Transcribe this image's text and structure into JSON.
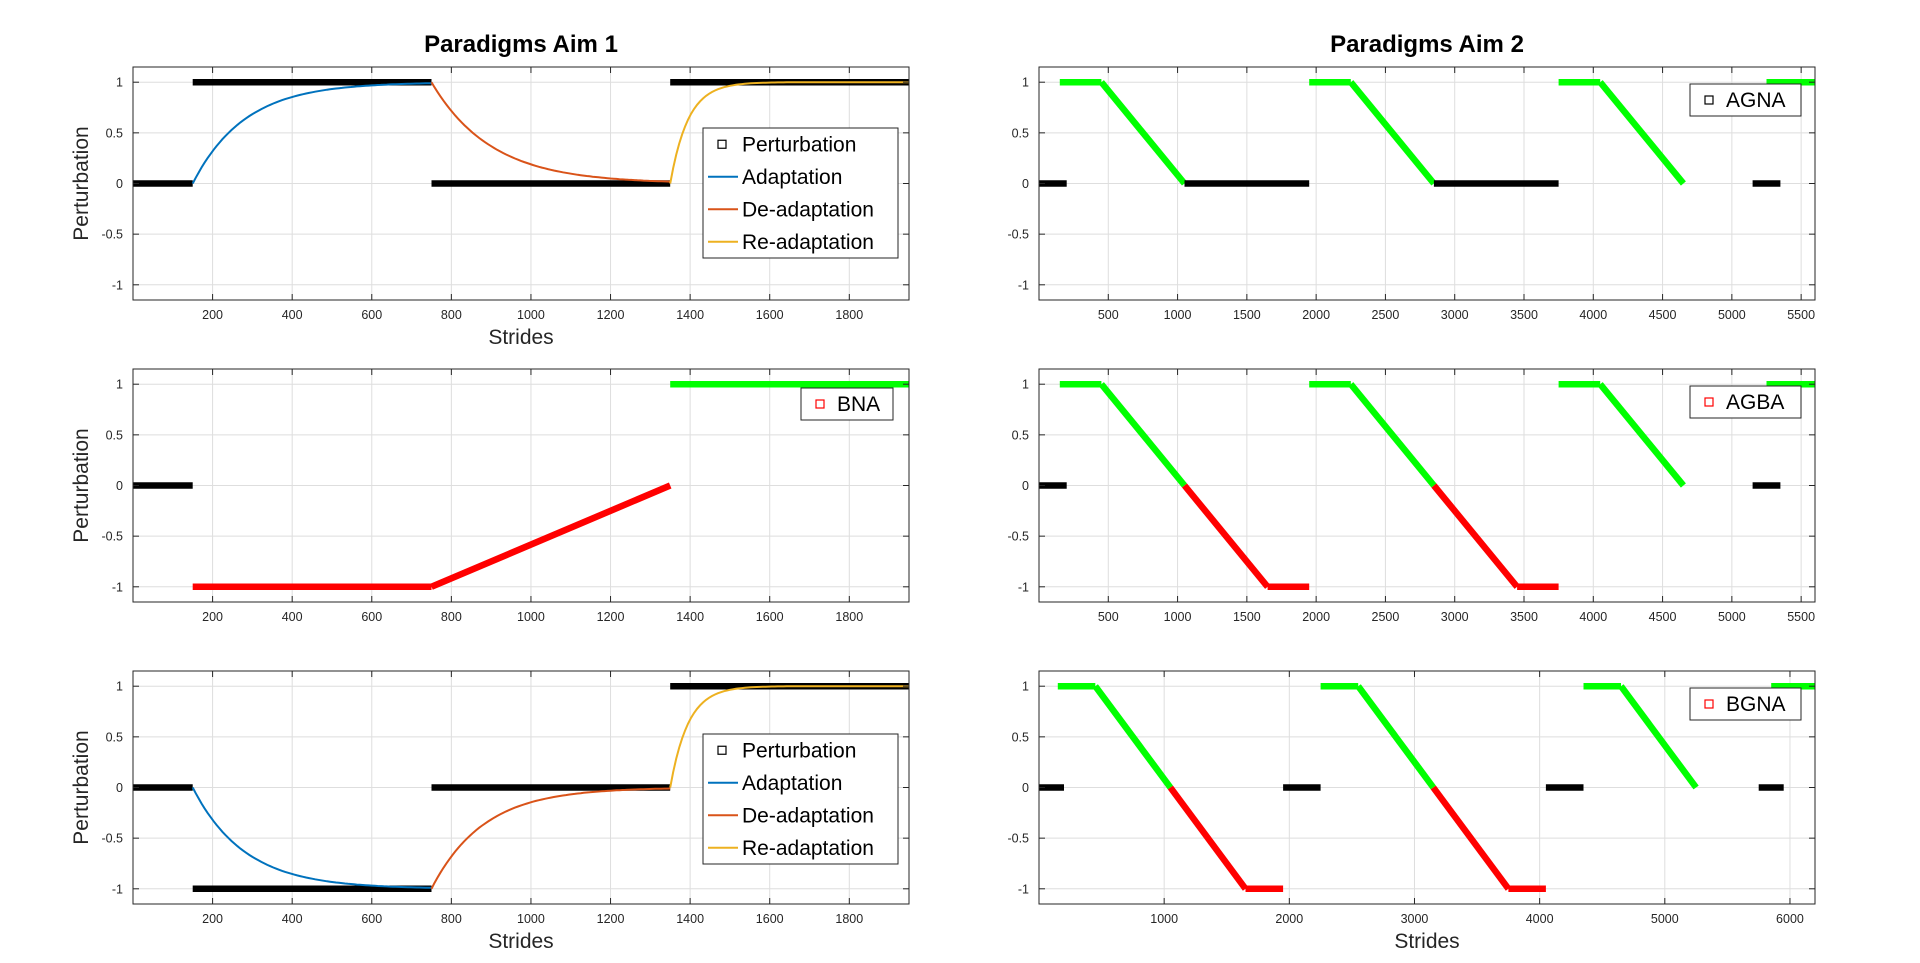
{
  "colors": {
    "perturbation": "#000000",
    "adaptation": "#0072BD",
    "deadaptation": "#D95319",
    "readaptation": "#EDB120",
    "green": "#00FF00",
    "red": "#FF0000",
    "grid": "#DEDEDE",
    "axis": "#262626"
  },
  "chart_data": [
    {
      "id": "a1",
      "type": "line",
      "title": "Paradigms Aim 1",
      "xlabel": "Strides",
      "ylabel": "Perturbation",
      "xlim": [
        0,
        1950
      ],
      "ylim": [
        -1.15,
        1.15
      ],
      "xticks": [
        200,
        400,
        600,
        800,
        1000,
        1200,
        1400,
        1600,
        1800
      ],
      "yticks": [
        -1,
        -0.5,
        0,
        0.5,
        1
      ],
      "yticklabels": [
        "-1",
        "-0.5",
        "0",
        "0.5",
        "1"
      ],
      "grid": true,
      "legend": {
        "location": "right",
        "entries": [
          "Perturbation",
          "Adaptation",
          "De-adaptation",
          "Re-adaptation"
        ]
      },
      "segments": [
        {
          "color": "perturbation",
          "pts": [
            [
              0,
              0
            ],
            [
              150,
              0
            ]
          ]
        },
        {
          "color": "perturbation",
          "pts": [
            [
              150,
              1
            ],
            [
              750,
              1
            ]
          ]
        },
        {
          "color": "perturbation",
          "pts": [
            [
              750,
              0
            ],
            [
              1350,
              0
            ]
          ]
        },
        {
          "color": "perturbation",
          "pts": [
            [
              1350,
              1
            ],
            [
              1950,
              1
            ]
          ]
        }
      ],
      "curves": [
        {
          "name": "Adaptation",
          "color": "adaptation",
          "x0": 150,
          "x1": 750,
          "from": 0,
          "to": 1,
          "tau": 130
        },
        {
          "name": "De-adaptation",
          "color": "deadaptation",
          "x0": 750,
          "x1": 1350,
          "from": 1,
          "to": 0,
          "tau": 150
        },
        {
          "name": "Re-adaptation",
          "color": "readaptation",
          "x0": 1350,
          "x1": 1950,
          "from": 0,
          "to": 1,
          "tau": 45
        }
      ]
    },
    {
      "id": "a2",
      "type": "line",
      "title": "",
      "xlabel": "",
      "ylabel": "Perturbation",
      "xlim": [
        0,
        1950
      ],
      "ylim": [
        -1.15,
        1.15
      ],
      "xticks": [
        200,
        400,
        600,
        800,
        1000,
        1200,
        1400,
        1600,
        1800
      ],
      "yticks": [
        -1,
        -0.5,
        0,
        0.5,
        1
      ],
      "yticklabels": [
        "-1",
        "-0.5",
        "0",
        "0.5",
        "1"
      ],
      "grid": true,
      "legend": {
        "location": "top-right",
        "entries": [
          "BNA"
        ],
        "marker_color": "red"
      },
      "segments": [
        {
          "color": "perturbation",
          "pts": [
            [
              0,
              0
            ],
            [
              150,
              0
            ]
          ]
        },
        {
          "color": "red",
          "pts": [
            [
              150,
              -1
            ],
            [
              750,
              -1
            ]
          ]
        },
        {
          "color": "red",
          "pts": [
            [
              750,
              -1
            ],
            [
              1350,
              0
            ]
          ]
        },
        {
          "color": "green",
          "pts": [
            [
              1350,
              1
            ],
            [
              1950,
              1
            ]
          ]
        }
      ],
      "curves": []
    },
    {
      "id": "a3",
      "type": "line",
      "title": "",
      "xlabel": "Strides",
      "ylabel": "Perturbation",
      "xlim": [
        0,
        1950
      ],
      "ylim": [
        -1.15,
        1.15
      ],
      "xticks": [
        200,
        400,
        600,
        800,
        1000,
        1200,
        1400,
        1600,
        1800
      ],
      "yticks": [
        -1,
        -0.5,
        0,
        0.5,
        1
      ],
      "yticklabels": [
        "-1",
        "-0.5",
        "0",
        "0.5",
        "1"
      ],
      "grid": true,
      "legend": {
        "location": "right",
        "entries": [
          "Perturbation",
          "Adaptation",
          "De-adaptation",
          "Re-adaptation"
        ]
      },
      "segments": [
        {
          "color": "perturbation",
          "pts": [
            [
              0,
              0
            ],
            [
              150,
              0
            ]
          ]
        },
        {
          "color": "perturbation",
          "pts": [
            [
              150,
              -1
            ],
            [
              750,
              -1
            ]
          ]
        },
        {
          "color": "perturbation",
          "pts": [
            [
              750,
              0
            ],
            [
              1350,
              0
            ]
          ]
        },
        {
          "color": "perturbation",
          "pts": [
            [
              1350,
              1
            ],
            [
              1950,
              1
            ]
          ]
        }
      ],
      "curves": [
        {
          "name": "Adaptation",
          "color": "adaptation",
          "x0": 150,
          "x1": 750,
          "from": 0,
          "to": -1,
          "tau": 130
        },
        {
          "name": "De-adaptation",
          "color": "deadaptation",
          "x0": 750,
          "x1": 1350,
          "from": -1,
          "to": 0,
          "tau": 130
        },
        {
          "name": "Re-adaptation",
          "color": "readaptation",
          "x0": 1350,
          "x1": 1950,
          "from": 0,
          "to": 1,
          "tau": 45
        }
      ]
    },
    {
      "id": "b1",
      "type": "line",
      "title": "Paradigms Aim 2",
      "xlabel": "",
      "ylabel": "",
      "xlim": [
        0,
        5600
      ],
      "ylim": [
        -1.15,
        1.15
      ],
      "xticks": [
        500,
        1000,
        1500,
        2000,
        2500,
        3000,
        3500,
        4000,
        4500,
        5000,
        5500
      ],
      "yticks": [
        -1,
        -0.5,
        0,
        0.5,
        1
      ],
      "yticklabels": [
        "-1",
        "-0.5",
        "0",
        "0.5",
        "1"
      ],
      "grid": true,
      "legend": {
        "location": "top-right",
        "entries": [
          "AGNA"
        ],
        "marker_color": "perturbation"
      },
      "segments": [
        {
          "color": "perturbation",
          "pts": [
            [
              0,
              0
            ],
            [
              200,
              0
            ]
          ]
        },
        {
          "color": "green",
          "pts": [
            [
              150,
              1
            ],
            [
              450,
              1
            ]
          ]
        },
        {
          "color": "green",
          "pts": [
            [
              450,
              1
            ],
            [
              1050,
              0
            ]
          ]
        },
        {
          "color": "perturbation",
          "pts": [
            [
              1050,
              0
            ],
            [
              1950,
              0
            ]
          ]
        },
        {
          "color": "green",
          "pts": [
            [
              1950,
              1
            ],
            [
              2250,
              1
            ]
          ]
        },
        {
          "color": "green",
          "pts": [
            [
              2250,
              1
            ],
            [
              2850,
              0
            ]
          ]
        },
        {
          "color": "perturbation",
          "pts": [
            [
              2850,
              0
            ],
            [
              3750,
              0
            ]
          ]
        },
        {
          "color": "green",
          "pts": [
            [
              3750,
              1
            ],
            [
              4050,
              1
            ]
          ]
        },
        {
          "color": "green",
          "pts": [
            [
              4050,
              1
            ],
            [
              4650,
              0
            ]
          ]
        },
        {
          "color": "perturbation",
          "pts": [
            [
              5150,
              0
            ],
            [
              5350,
              0
            ]
          ]
        },
        {
          "color": "green",
          "pts": [
            [
              5250,
              1
            ],
            [
              5600,
              1
            ]
          ]
        }
      ],
      "curves": []
    },
    {
      "id": "b2",
      "type": "line",
      "title": "",
      "xlabel": "",
      "ylabel": "",
      "xlim": [
        0,
        5600
      ],
      "ylim": [
        -1.15,
        1.15
      ],
      "xticks": [
        500,
        1000,
        1500,
        2000,
        2500,
        3000,
        3500,
        4000,
        4500,
        5000,
        5500
      ],
      "yticks": [
        -1,
        -0.5,
        0,
        0.5,
        1
      ],
      "yticklabels": [
        "-1",
        "-0.5",
        "0",
        "0.5",
        "1"
      ],
      "grid": true,
      "legend": {
        "location": "top-right",
        "entries": [
          "AGBA"
        ],
        "marker_color": "red"
      },
      "segments": [
        {
          "color": "perturbation",
          "pts": [
            [
              0,
              0
            ],
            [
              200,
              0
            ]
          ]
        },
        {
          "color": "green",
          "pts": [
            [
              150,
              1
            ],
            [
              450,
              1
            ]
          ]
        },
        {
          "color": "green",
          "pts": [
            [
              450,
              1
            ],
            [
              1050,
              0
            ]
          ]
        },
        {
          "color": "red",
          "pts": [
            [
              1050,
              0
            ],
            [
              1650,
              -1
            ]
          ]
        },
        {
          "color": "red",
          "pts": [
            [
              1650,
              -1
            ],
            [
              1950,
              -1
            ]
          ]
        },
        {
          "color": "green",
          "pts": [
            [
              1950,
              1
            ],
            [
              2250,
              1
            ]
          ]
        },
        {
          "color": "green",
          "pts": [
            [
              2250,
              1
            ],
            [
              2850,
              0
            ]
          ]
        },
        {
          "color": "red",
          "pts": [
            [
              2850,
              0
            ],
            [
              3450,
              -1
            ]
          ]
        },
        {
          "color": "red",
          "pts": [
            [
              3450,
              -1
            ],
            [
              3750,
              -1
            ]
          ]
        },
        {
          "color": "green",
          "pts": [
            [
              3750,
              1
            ],
            [
              4050,
              1
            ]
          ]
        },
        {
          "color": "green",
          "pts": [
            [
              4050,
              1
            ],
            [
              4650,
              0
            ]
          ]
        },
        {
          "color": "perturbation",
          "pts": [
            [
              5150,
              0
            ],
            [
              5350,
              0
            ]
          ]
        },
        {
          "color": "green",
          "pts": [
            [
              5250,
              1
            ],
            [
              5600,
              1
            ]
          ]
        }
      ],
      "curves": []
    },
    {
      "id": "b3",
      "type": "line",
      "title": "",
      "xlabel": "Strides",
      "ylabel": "",
      "xlim": [
        0,
        6200
      ],
      "ylim": [
        -1.15,
        1.15
      ],
      "xticks": [
        1000,
        2000,
        3000,
        4000,
        5000,
        6000
      ],
      "yticks": [
        -1,
        -0.5,
        0,
        0.5,
        1
      ],
      "yticklabels": [
        "-1",
        "-0.5",
        "0",
        "0.5",
        "1"
      ],
      "grid": true,
      "legend": {
        "location": "top-right",
        "entries": [
          "BGNA"
        ],
        "marker_color": "red"
      },
      "segments": [
        {
          "color": "perturbation",
          "pts": [
            [
              0,
              0
            ],
            [
              200,
              0
            ]
          ]
        },
        {
          "color": "green",
          "pts": [
            [
              150,
              1
            ],
            [
              450,
              1
            ]
          ]
        },
        {
          "color": "green",
          "pts": [
            [
              450,
              1
            ],
            [
              1050,
              0
            ]
          ]
        },
        {
          "color": "red",
          "pts": [
            [
              1050,
              0
            ],
            [
              1650,
              -1
            ]
          ]
        },
        {
          "color": "red",
          "pts": [
            [
              1650,
              -1
            ],
            [
              1950,
              -1
            ]
          ]
        },
        {
          "color": "perturbation",
          "pts": [
            [
              1950,
              0
            ],
            [
              2250,
              0
            ]
          ]
        },
        {
          "color": "green",
          "pts": [
            [
              2250,
              1
            ],
            [
              2550,
              1
            ]
          ]
        },
        {
          "color": "green",
          "pts": [
            [
              2550,
              1
            ],
            [
              3150,
              0
            ]
          ]
        },
        {
          "color": "red",
          "pts": [
            [
              3150,
              0
            ],
            [
              3750,
              -1
            ]
          ]
        },
        {
          "color": "red",
          "pts": [
            [
              3750,
              -1
            ],
            [
              4050,
              -1
            ]
          ]
        },
        {
          "color": "perturbation",
          "pts": [
            [
              4050,
              0
            ],
            [
              4350,
              0
            ]
          ]
        },
        {
          "color": "green",
          "pts": [
            [
              4350,
              1
            ],
            [
              4650,
              1
            ]
          ]
        },
        {
          "color": "green",
          "pts": [
            [
              4650,
              1
            ],
            [
              5250,
              0
            ]
          ]
        },
        {
          "color": "perturbation",
          "pts": [
            [
              5750,
              0
            ],
            [
              5950,
              0
            ]
          ]
        },
        {
          "color": "green",
          "pts": [
            [
              5850,
              1
            ],
            [
              6200,
              1
            ]
          ]
        }
      ],
      "curves": []
    }
  ]
}
